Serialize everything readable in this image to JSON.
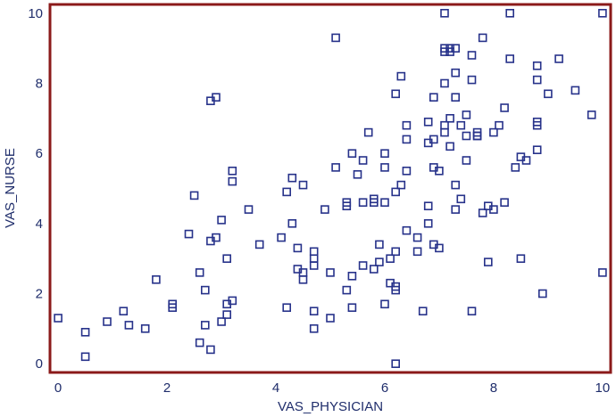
{
  "chart_data": {
    "type": "scatter",
    "title": "",
    "xlabel": "VAS_PHYSICIAN",
    "ylabel": "VAS_NURSE",
    "xlim": [
      -0.15,
      10.15
    ],
    "ylim": [
      -0.25,
      10.25
    ],
    "xticks": [
      "0",
      "2",
      "4",
      "6",
      "8",
      "10"
    ],
    "yticks": [
      "0",
      "2",
      "4",
      "6",
      "8",
      "10"
    ],
    "grid": false,
    "colors": {
      "frame": "#8b1a1a",
      "marker": "#27328a",
      "text": "#1f2d6b"
    },
    "points": [
      [
        0.0,
        1.3
      ],
      [
        0.5,
        0.9
      ],
      [
        0.5,
        0.2
      ],
      [
        0.9,
        1.2
      ],
      [
        1.2,
        1.5
      ],
      [
        1.3,
        1.1
      ],
      [
        1.6,
        1.0
      ],
      [
        1.8,
        2.4
      ],
      [
        2.1,
        1.7
      ],
      [
        2.1,
        1.6
      ],
      [
        2.4,
        3.7
      ],
      [
        2.5,
        4.8
      ],
      [
        2.6,
        2.6
      ],
      [
        2.6,
        0.6
      ],
      [
        2.7,
        2.1
      ],
      [
        2.7,
        1.1
      ],
      [
        2.8,
        0.4
      ],
      [
        2.8,
        3.5
      ],
      [
        2.8,
        7.5
      ],
      [
        2.9,
        7.6
      ],
      [
        2.9,
        3.6
      ],
      [
        3.0,
        4.1
      ],
      [
        3.0,
        1.2
      ],
      [
        3.1,
        3.0
      ],
      [
        3.1,
        1.7
      ],
      [
        3.1,
        1.4
      ],
      [
        3.2,
        5.5
      ],
      [
        3.2,
        5.2
      ],
      [
        3.2,
        1.8
      ],
      [
        3.5,
        4.4
      ],
      [
        3.7,
        3.4
      ],
      [
        4.1,
        3.6
      ],
      [
        4.2,
        4.9
      ],
      [
        4.2,
        1.6
      ],
      [
        4.3,
        5.3
      ],
      [
        4.3,
        4.0
      ],
      [
        4.4,
        3.3
      ],
      [
        4.4,
        2.7
      ],
      [
        4.5,
        5.1
      ],
      [
        4.5,
        2.6
      ],
      [
        4.5,
        2.4
      ],
      [
        4.7,
        3.2
      ],
      [
        4.7,
        3.0
      ],
      [
        4.7,
        2.8
      ],
      [
        4.7,
        1.5
      ],
      [
        4.7,
        1.0
      ],
      [
        4.9,
        4.4
      ],
      [
        5.0,
        2.6
      ],
      [
        5.0,
        1.3
      ],
      [
        5.1,
        9.3
      ],
      [
        5.1,
        5.6
      ],
      [
        5.3,
        4.6
      ],
      [
        5.3,
        4.5
      ],
      [
        5.3,
        2.1
      ],
      [
        5.4,
        6.0
      ],
      [
        5.4,
        2.5
      ],
      [
        5.4,
        1.6
      ],
      [
        5.5,
        5.4
      ],
      [
        5.6,
        5.8
      ],
      [
        5.6,
        4.6
      ],
      [
        5.6,
        2.8
      ],
      [
        5.7,
        6.6
      ],
      [
        5.8,
        4.7
      ],
      [
        5.8,
        4.6
      ],
      [
        5.8,
        2.7
      ],
      [
        5.9,
        3.4
      ],
      [
        5.9,
        2.9
      ],
      [
        6.0,
        5.6
      ],
      [
        6.0,
        6.0
      ],
      [
        6.0,
        4.6
      ],
      [
        6.0,
        1.7
      ],
      [
        6.1,
        3.0
      ],
      [
        6.1,
        2.3
      ],
      [
        6.2,
        7.7
      ],
      [
        6.2,
        4.9
      ],
      [
        6.2,
        3.2
      ],
      [
        6.2,
        2.2
      ],
      [
        6.2,
        2.1
      ],
      [
        6.2,
        0.0
      ],
      [
        6.3,
        8.2
      ],
      [
        6.3,
        5.1
      ],
      [
        6.4,
        6.8
      ],
      [
        6.4,
        6.4
      ],
      [
        6.4,
        5.5
      ],
      [
        6.4,
        3.8
      ],
      [
        6.6,
        3.6
      ],
      [
        6.6,
        3.2
      ],
      [
        6.7,
        1.5
      ],
      [
        6.8,
        4.5
      ],
      [
        6.8,
        6.3
      ],
      [
        6.8,
        6.9
      ],
      [
        6.8,
        4.0
      ],
      [
        6.9,
        7.6
      ],
      [
        6.9,
        6.4
      ],
      [
        6.9,
        5.6
      ],
      [
        6.9,
        3.4
      ],
      [
        7.0,
        5.5
      ],
      [
        7.0,
        3.3
      ],
      [
        7.1,
        10.0
      ],
      [
        7.1,
        9.0
      ],
      [
        7.1,
        8.9
      ],
      [
        7.1,
        8.0
      ],
      [
        7.1,
        6.8
      ],
      [
        7.1,
        6.6
      ],
      [
        7.2,
        9.0
      ],
      [
        7.2,
        8.9
      ],
      [
        7.2,
        7.0
      ],
      [
        7.2,
        6.2
      ],
      [
        7.3,
        9.0
      ],
      [
        7.3,
        8.3
      ],
      [
        7.3,
        7.6
      ],
      [
        7.3,
        5.1
      ],
      [
        7.3,
        4.4
      ],
      [
        7.4,
        6.8
      ],
      [
        7.4,
        4.7
      ],
      [
        7.5,
        7.1
      ],
      [
        7.5,
        6.5
      ],
      [
        7.5,
        5.8
      ],
      [
        7.6,
        8.8
      ],
      [
        7.6,
        8.1
      ],
      [
        7.6,
        1.5
      ],
      [
        7.7,
        6.6
      ],
      [
        7.7,
        6.5
      ],
      [
        7.7,
        6.5
      ],
      [
        7.8,
        9.3
      ],
      [
        7.8,
        4.3
      ],
      [
        7.9,
        4.5
      ],
      [
        7.9,
        2.9
      ],
      [
        8.0,
        6.6
      ],
      [
        8.0,
        4.4
      ],
      [
        8.1,
        6.8
      ],
      [
        8.2,
        7.3
      ],
      [
        8.2,
        4.6
      ],
      [
        8.3,
        10.0
      ],
      [
        8.3,
        8.7
      ],
      [
        8.4,
        5.6
      ],
      [
        8.5,
        5.9
      ],
      [
        8.5,
        3.0
      ],
      [
        8.6,
        5.8
      ],
      [
        8.8,
        8.5
      ],
      [
        8.8,
        8.1
      ],
      [
        8.8,
        6.9
      ],
      [
        8.8,
        6.8
      ],
      [
        8.8,
        6.1
      ],
      [
        8.9,
        2.0
      ],
      [
        9.0,
        7.7
      ],
      [
        9.2,
        8.7
      ],
      [
        9.5,
        7.8
      ],
      [
        9.8,
        7.1
      ],
      [
        10.0,
        10.0
      ],
      [
        10.0,
        2.6
      ]
    ]
  }
}
